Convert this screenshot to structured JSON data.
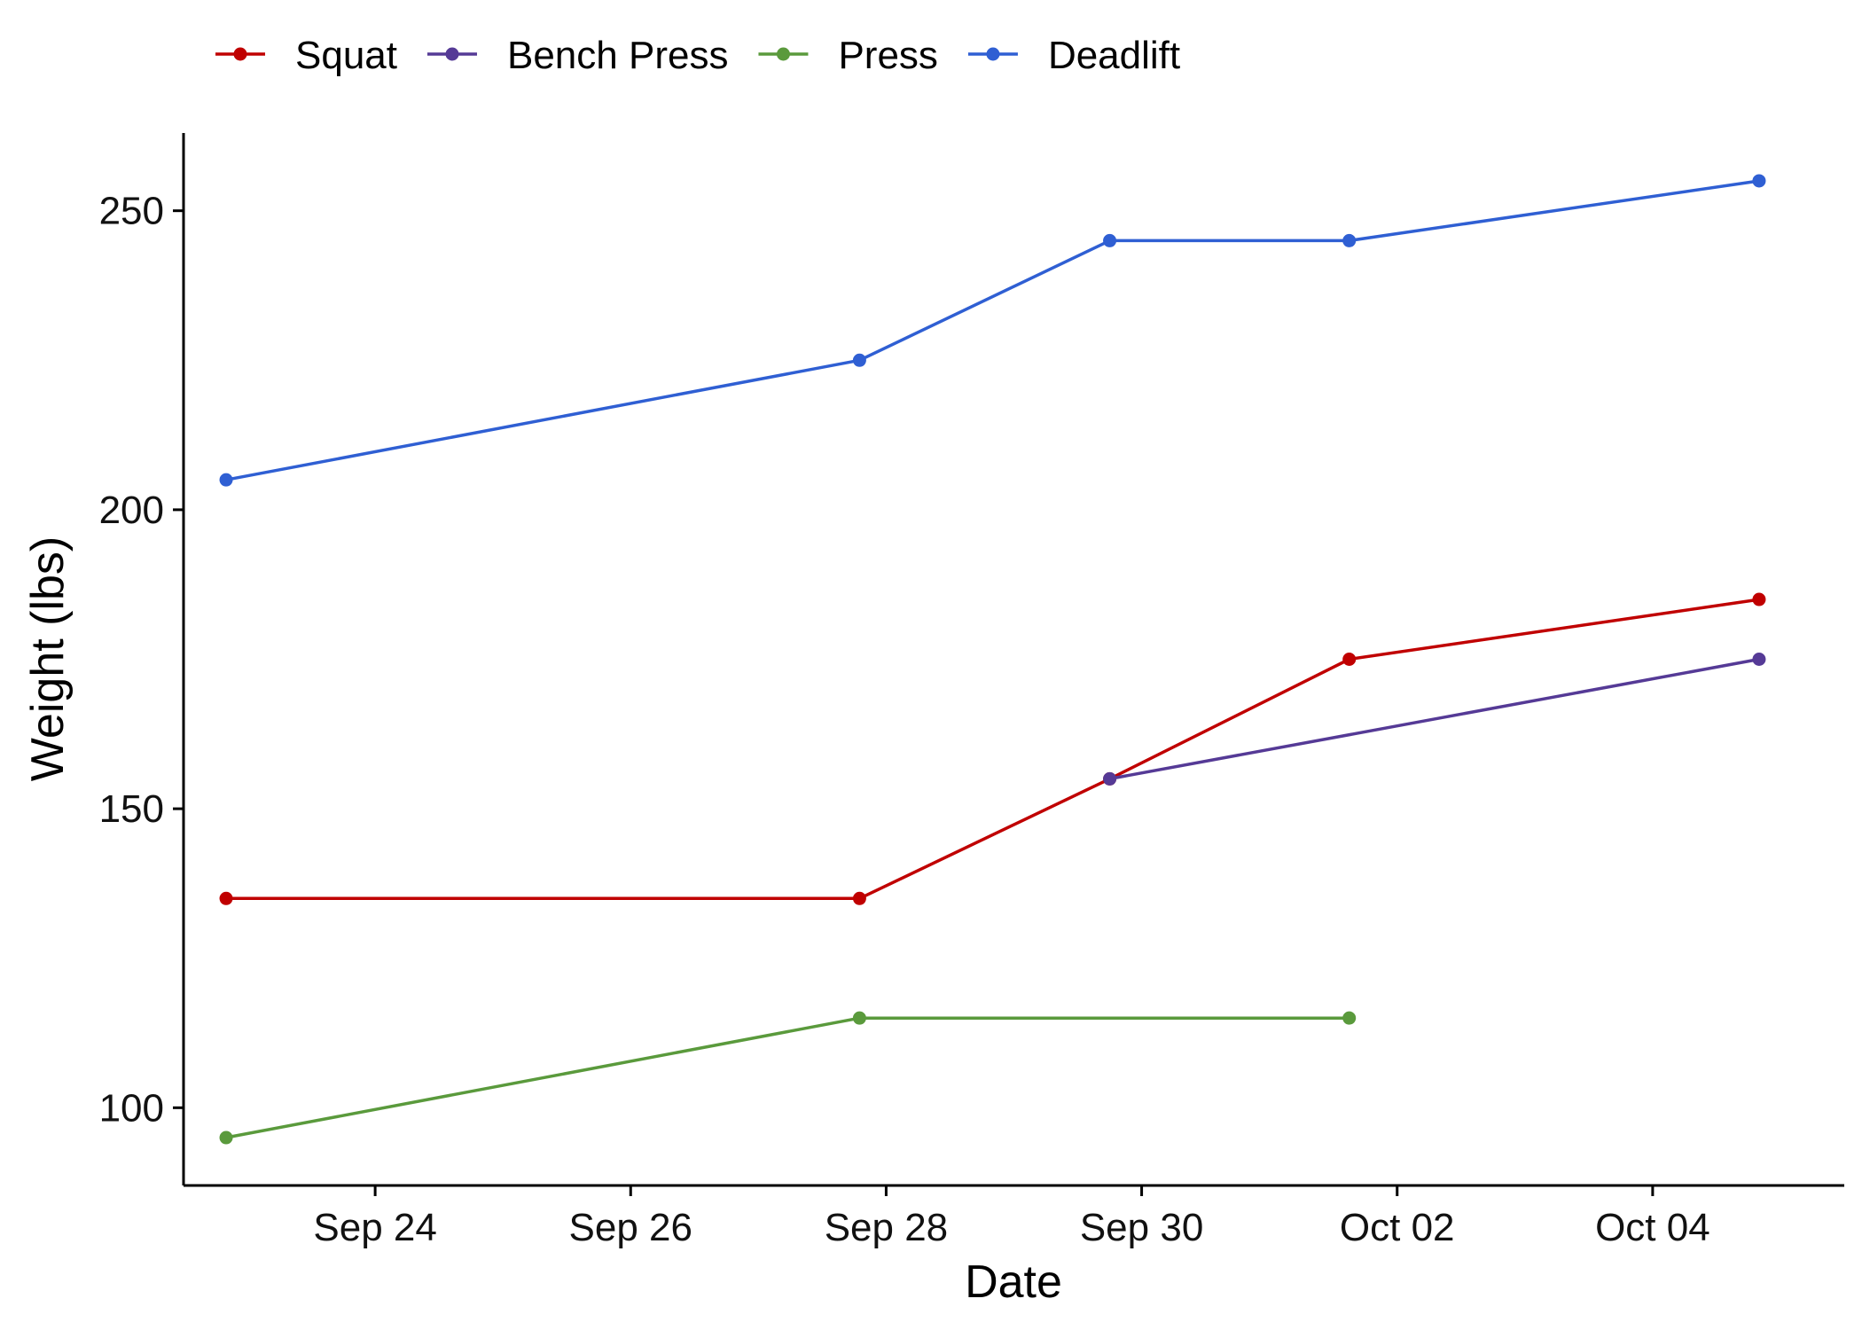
{
  "chart_data": {
    "type": "line",
    "xlabel": "Date",
    "ylabel": "Weight (lbs)",
    "x_type": "date",
    "xlim": [
      "2024-09-22T12:00",
      "2024-10-05T12:00"
    ],
    "ylim": [
      87,
      263
    ],
    "x_ticks": [
      {
        "date": "2024-09-24",
        "label": "Sep 24"
      },
      {
        "date": "2024-09-26",
        "label": "Sep 26"
      },
      {
        "date": "2024-09-28",
        "label": "Sep 28"
      },
      {
        "date": "2024-09-30",
        "label": "Sep 30"
      },
      {
        "date": "2024-10-02",
        "label": "Oct 02"
      },
      {
        "date": "2024-10-04",
        "label": "Oct 04"
      }
    ],
    "y_ticks": [
      100,
      150,
      200,
      250
    ],
    "grid": false,
    "legend_position": "top-left",
    "series": [
      {
        "name": "Squat",
        "color": "#c00000",
        "x": [
          "2024-09-22T20:00",
          "2024-09-27T19:00",
          "2024-09-29T18:00",
          "2024-10-01T15:00",
          "2024-10-04T20:00"
        ],
        "y": [
          135,
          135,
          155,
          175,
          185
        ]
      },
      {
        "name": "Bench Press",
        "color": "#553a96",
        "x": [
          "2024-09-29T18:00",
          "2024-10-04T20:00"
        ],
        "y": [
          155,
          175
        ]
      },
      {
        "name": "Press",
        "color": "#5a9a3c",
        "x": [
          "2024-09-22T20:00",
          "2024-09-27T19:00",
          "2024-10-01T15:00"
        ],
        "y": [
          95,
          115,
          115
        ]
      },
      {
        "name": "Deadlift",
        "color": "#2f5fd3",
        "x": [
          "2024-09-22T20:00",
          "2024-09-27T19:00",
          "2024-09-29T18:00",
          "2024-10-01T15:00",
          "2024-10-04T20:00"
        ],
        "y": [
          205,
          225,
          245,
          245,
          255
        ]
      }
    ]
  }
}
